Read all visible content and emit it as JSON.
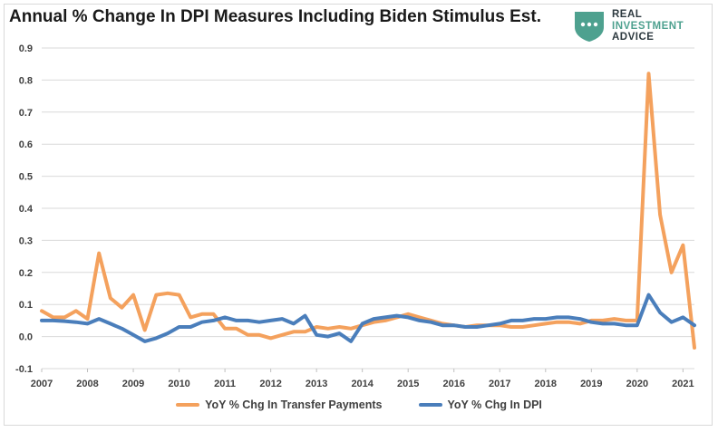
{
  "title": "Annual % Change In DPI Measures Including Biden Stimulus Est.",
  "logo": {
    "line1": "REAL",
    "line2": "INVESTMENT",
    "line3": "ADVICE",
    "color_dark": "#2e3a40",
    "color_accent": "#4ea18f"
  },
  "chart_data": {
    "type": "line",
    "title": "Annual % Change In DPI Measures Including Biden Stimulus Est.",
    "xlabel": "",
    "ylabel": "",
    "xlim": [
      2007,
      2021.25
    ],
    "ylim": [
      -0.1,
      0.9
    ],
    "yticks": [
      "-0.1",
      "0.0",
      "0.1",
      "0.2",
      "0.3",
      "0.4",
      "0.5",
      "0.6",
      "0.7",
      "0.8",
      "0.9"
    ],
    "xticks": [
      "2007",
      "2008",
      "2009",
      "2010",
      "2011",
      "2012",
      "2013",
      "2014",
      "2015",
      "2016",
      "2017",
      "2018",
      "2019",
      "2020",
      "2021"
    ],
    "grid": "horizontal",
    "legend_position": "bottom",
    "series": [
      {
        "name": "YoY % Chg In Transfer Payments",
        "color": "#f4a15d",
        "x": [
          2007.0,
          2007.25,
          2007.5,
          2007.75,
          2008.0,
          2008.25,
          2008.5,
          2008.75,
          2009.0,
          2009.25,
          2009.5,
          2009.75,
          2010.0,
          2010.25,
          2010.5,
          2010.75,
          2011.0,
          2011.25,
          2011.5,
          2011.75,
          2012.0,
          2012.25,
          2012.5,
          2012.75,
          2013.0,
          2013.25,
          2013.5,
          2013.75,
          2014.0,
          2014.25,
          2014.5,
          2014.75,
          2015.0,
          2015.25,
          2015.5,
          2015.75,
          2016.0,
          2016.25,
          2016.5,
          2016.75,
          2017.0,
          2017.25,
          2017.5,
          2017.75,
          2018.0,
          2018.25,
          2018.5,
          2018.75,
          2019.0,
          2019.25,
          2019.5,
          2019.75,
          2020.0,
          2020.25,
          2020.5,
          2020.75,
          2021.0,
          2021.25
        ],
        "values": [
          0.08,
          0.06,
          0.06,
          0.08,
          0.055,
          0.26,
          0.12,
          0.09,
          0.13,
          0.02,
          0.13,
          0.135,
          0.13,
          0.06,
          0.07,
          0.07,
          0.025,
          0.025,
          0.005,
          0.005,
          -0.005,
          0.005,
          0.015,
          0.015,
          0.03,
          0.025,
          0.03,
          0.025,
          0.035,
          0.045,
          0.05,
          0.06,
          0.07,
          0.06,
          0.05,
          0.04,
          0.035,
          0.03,
          0.035,
          0.035,
          0.035,
          0.03,
          0.03,
          0.035,
          0.04,
          0.045,
          0.045,
          0.04,
          0.05,
          0.05,
          0.055,
          0.05,
          0.05,
          0.82,
          0.38,
          0.2,
          0.285,
          -0.035
        ]
      },
      {
        "name": "YoY % Chg In DPI",
        "color": "#4a7ebb",
        "x": [
          2007.0,
          2007.25,
          2007.5,
          2007.75,
          2008.0,
          2008.25,
          2008.5,
          2008.75,
          2009.0,
          2009.25,
          2009.5,
          2009.75,
          2010.0,
          2010.25,
          2010.5,
          2010.75,
          2011.0,
          2011.25,
          2011.5,
          2011.75,
          2012.0,
          2012.25,
          2012.5,
          2012.75,
          2013.0,
          2013.25,
          2013.5,
          2013.75,
          2014.0,
          2014.25,
          2014.5,
          2014.75,
          2015.0,
          2015.25,
          2015.5,
          2015.75,
          2016.0,
          2016.25,
          2016.5,
          2016.75,
          2017.0,
          2017.25,
          2017.5,
          2017.75,
          2018.0,
          2018.25,
          2018.5,
          2018.75,
          2019.0,
          2019.25,
          2019.5,
          2019.75,
          2020.0,
          2020.25,
          2020.5,
          2020.75,
          2021.0,
          2021.25
        ],
        "values": [
          0.05,
          0.05,
          0.048,
          0.045,
          0.04,
          0.055,
          0.04,
          0.025,
          0.005,
          -0.015,
          -0.005,
          0.01,
          0.03,
          0.03,
          0.045,
          0.05,
          0.06,
          0.05,
          0.05,
          0.045,
          0.05,
          0.055,
          0.04,
          0.065,
          0.005,
          0.0,
          0.01,
          -0.015,
          0.04,
          0.055,
          0.06,
          0.065,
          0.06,
          0.05,
          0.045,
          0.035,
          0.035,
          0.03,
          0.03,
          0.035,
          0.04,
          0.05,
          0.05,
          0.055,
          0.055,
          0.06,
          0.06,
          0.055,
          0.045,
          0.04,
          0.04,
          0.035,
          0.035,
          0.13,
          0.075,
          0.045,
          0.06,
          0.035
        ]
      }
    ]
  }
}
